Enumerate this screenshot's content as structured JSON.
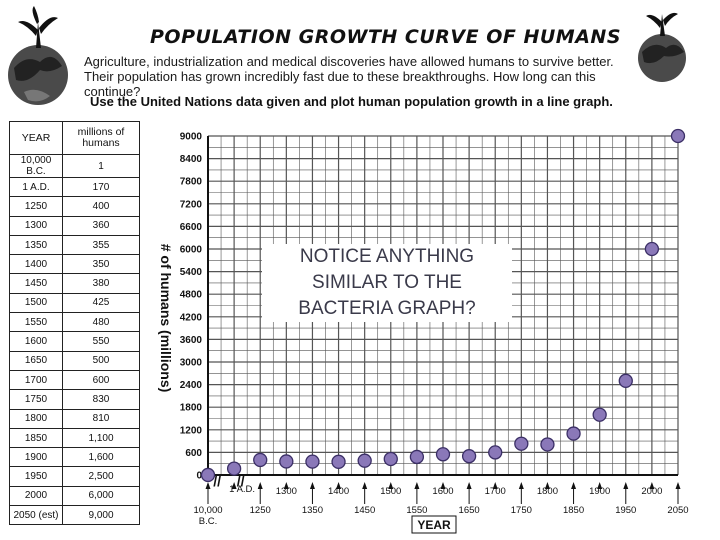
{
  "header": {
    "title": "POPULATION GROWTH CURVE OF HUMANS",
    "intro": "Agriculture, industrialization and medical discoveries have allowed humans to survive better. Their population has grown incredibly fast due to these breakthroughs. How long can this continue?",
    "instruction": "Use the United Nations data given and plot human population growth in a line graph."
  },
  "table": {
    "headers": [
      "YEAR",
      "millions of humans"
    ],
    "rows": [
      [
        "10,000 B.C.",
        "1"
      ],
      [
        "1 A.D.",
        "170"
      ],
      [
        "1250",
        "400"
      ],
      [
        "1300",
        "360"
      ],
      [
        "1350",
        "355"
      ],
      [
        "1400",
        "350"
      ],
      [
        "1450",
        "380"
      ],
      [
        "1500",
        "425"
      ],
      [
        "1550",
        "480"
      ],
      [
        "1600",
        "550"
      ],
      [
        "1650",
        "500"
      ],
      [
        "1700",
        "600"
      ],
      [
        "1750",
        "830"
      ],
      [
        "1800",
        "810"
      ],
      [
        "1850",
        "1,100"
      ],
      [
        "1900",
        "1,600"
      ],
      [
        "1950",
        "2,500"
      ],
      [
        "2000",
        "6,000"
      ],
      [
        "2050 (est)",
        "9,000"
      ]
    ]
  },
  "annotation": "NOTICE  ANYTHING SIMILAR TO THE BACTERIA GRAPH?",
  "colors": {
    "point": "#8a78b8",
    "point_stroke": "#3b2f66",
    "grid": "#555555"
  },
  "icons": [
    "tree-globe-icon-left",
    "tree-globe-icon-right"
  ],
  "chart_data": {
    "type": "scatter",
    "xlabel": "YEAR",
    "ylabel": "# of humans (millions)",
    "y_ticks": [
      0,
      600,
      1200,
      1800,
      2400,
      3000,
      3600,
      4200,
      4800,
      5400,
      6000,
      6600,
      7200,
      7800,
      8400,
      9000
    ],
    "ylim": [
      0,
      9000
    ],
    "x_ticks": [
      "10,000 B.C.",
      "1 A.D.",
      "1250",
      "1300",
      "1350",
      "1400",
      "1450",
      "1500",
      "1550",
      "1600",
      "1650",
      "1700",
      "1750",
      "1800",
      "1850",
      "1900",
      "1950",
      "2000",
      "2050"
    ],
    "x_break_symbols": [
      "//",
      "//"
    ],
    "grid": true,
    "points": [
      {
        "x": "10,000 B.C.",
        "y": 1
      },
      {
        "x": "1 A.D.",
        "y": 170
      },
      {
        "x": "1250",
        "y": 400
      },
      {
        "x": "1300",
        "y": 360
      },
      {
        "x": "1350",
        "y": 355
      },
      {
        "x": "1400",
        "y": 350
      },
      {
        "x": "1450",
        "y": 380
      },
      {
        "x": "1500",
        "y": 425
      },
      {
        "x": "1550",
        "y": 480
      },
      {
        "x": "1600",
        "y": 550
      },
      {
        "x": "1650",
        "y": 500
      },
      {
        "x": "1700",
        "y": 600
      },
      {
        "x": "1750",
        "y": 830
      },
      {
        "x": "1800",
        "y": 810
      },
      {
        "x": "1850",
        "y": 1100
      },
      {
        "x": "1900",
        "y": 1600
      },
      {
        "x": "1950",
        "y": 2500
      },
      {
        "x": "2000",
        "y": 6000
      },
      {
        "x": "2050",
        "y": 9000
      }
    ]
  }
}
